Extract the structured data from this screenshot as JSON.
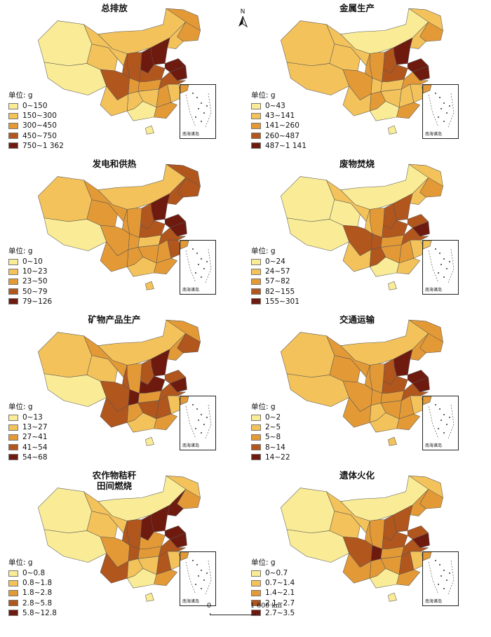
{
  "unit_label": "单位: g",
  "inset_caption": "南海诸岛",
  "north_label": "N",
  "scale": {
    "zero": "0",
    "distance": "1 600 km"
  },
  "palette": [
    "#faec96",
    "#f3c25a",
    "#e39a36",
    "#b1561d",
    "#6e1a0f"
  ],
  "panels": [
    {
      "title": "总排放",
      "classes": [
        "0~150",
        "150~300",
        "300~450",
        "450~750",
        "750~1 362"
      ],
      "levels": [
        0,
        0,
        1,
        1,
        1,
        2,
        2,
        1,
        4,
        4,
        4,
        3,
        3,
        3,
        2,
        3,
        2,
        1,
        1,
        1,
        0,
        2,
        1,
        0,
        0,
        2,
        4,
        3
      ]
    },
    {
      "title": "金属生产",
      "classes": [
        "0~43",
        "43~141",
        "141~260",
        "260~487",
        "487~1 141"
      ],
      "levels": [
        1,
        1,
        1,
        1,
        0,
        1,
        2,
        1,
        4,
        4,
        3,
        2,
        2,
        2,
        1,
        3,
        1,
        1,
        2,
        1,
        0,
        1,
        1,
        0,
        0,
        2,
        4,
        2
      ]
    },
    {
      "title": "发电和供热",
      "classes": [
        "0~10",
        "10~23",
        "23~50",
        "50~79",
        "79~126"
      ],
      "levels": [
        1,
        0,
        2,
        2,
        1,
        3,
        3,
        3,
        4,
        4,
        3,
        2,
        2,
        2,
        2,
        3,
        1,
        2,
        2,
        2,
        1,
        2,
        3,
        0,
        1,
        2,
        4,
        3
      ]
    },
    {
      "title": "废物焚烧",
      "classes": [
        "0~24",
        "24~57",
        "57~82",
        "82~155",
        "155~301"
      ],
      "levels": [
        0,
        0,
        0,
        1,
        0,
        1,
        2,
        1,
        3,
        3,
        3,
        2,
        1,
        3,
        3,
        3,
        2,
        1,
        3,
        2,
        0,
        2,
        1,
        0,
        0,
        1,
        4,
        3
      ]
    },
    {
      "title": "矿物产品生产",
      "classes": [
        "0~13",
        "13~27",
        "27~41",
        "41~54",
        "54~68"
      ],
      "levels": [
        1,
        0,
        1,
        2,
        1,
        2,
        3,
        2,
        4,
        3,
        3,
        2,
        3,
        3,
        4,
        4,
        2,
        3,
        2,
        3,
        1,
        3,
        1,
        0,
        0,
        2,
        4,
        3
      ]
    },
    {
      "title": "交通运输",
      "classes": [
        "0~2",
        "2~5",
        "5~8",
        "8~14",
        "14~22"
      ],
      "levels": [
        1,
        1,
        2,
        2,
        1,
        2,
        2,
        2,
        4,
        4,
        3,
        2,
        2,
        2,
        2,
        3,
        2,
        2,
        1,
        2,
        1,
        2,
        1,
        0,
        1,
        2,
        4,
        3
      ]
    },
    {
      "title": "农作物秸秆\n田间燃烧",
      "classes": [
        "0~0.8",
        "0.8~1.8",
        "1.8~2.8",
        "2.8~5.8",
        "5.8~12.8"
      ],
      "levels": [
        0,
        0,
        1,
        1,
        0,
        1,
        2,
        4,
        4,
        4,
        4,
        3,
        3,
        2,
        3,
        2,
        2,
        3,
        1,
        1,
        0,
        3,
        1,
        0,
        0,
        2,
        4,
        3
      ]
    },
    {
      "title": "遗体火化",
      "classes": [
        "0~0.7",
        "0.7~1.4",
        "1.4~2.1",
        "2.1~2.7",
        "2.7~3.5"
      ],
      "levels": [
        0,
        0,
        1,
        1,
        0,
        1,
        2,
        2,
        3,
        3,
        3,
        2,
        2,
        3,
        4,
        3,
        2,
        2,
        2,
        2,
        0,
        3,
        1,
        0,
        0,
        2,
        4,
        3
      ]
    }
  ]
}
